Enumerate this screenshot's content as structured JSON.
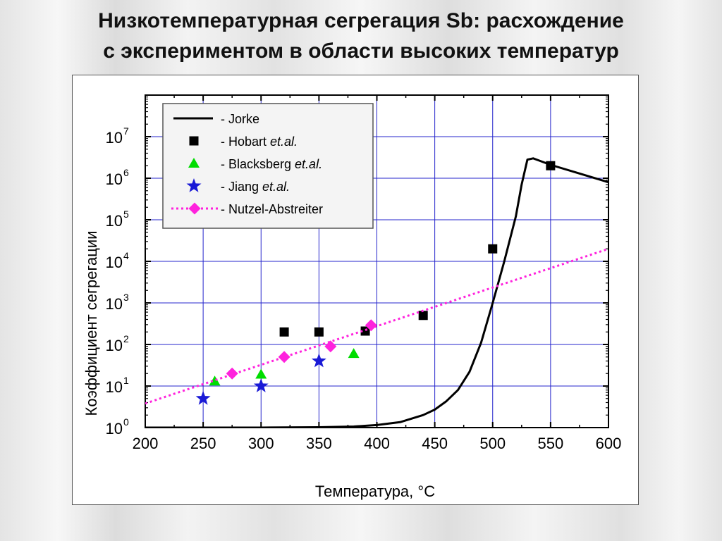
{
  "slide": {
    "title_line1": "Низкотемпературная сегрегация Sb: расхождение",
    "title_line2": "с экспериментом в области высоких температур"
  },
  "chart_data": {
    "type": "scatter",
    "xlabel": "Температура, °C",
    "ylabel": "Коэффициент сегрегации",
    "xlim": [
      200,
      600
    ],
    "ylim": [
      1,
      100000000
    ],
    "y_scale": "log",
    "x_ticks": [
      200,
      250,
      300,
      350,
      400,
      450,
      500,
      550,
      600
    ],
    "y_ticks": [
      {
        "base": "10",
        "exp": "0",
        "value": 1
      },
      {
        "base": "10",
        "exp": "1",
        "value": 10
      },
      {
        "base": "10",
        "exp": "2",
        "value": 100
      },
      {
        "base": "10",
        "exp": "3",
        "value": 1000
      },
      {
        "base": "10",
        "exp": "4",
        "value": 10000
      },
      {
        "base": "10",
        "exp": "5",
        "value": 100000
      },
      {
        "base": "10",
        "exp": "6",
        "value": 1000000
      },
      {
        "base": "10",
        "exp": "7",
        "value": 10000000
      }
    ],
    "grid": true,
    "legend_position": "top-left",
    "series": [
      {
        "name": "Jorke",
        "name_suffix": "",
        "kind": "line",
        "color": "#000000",
        "points": [
          [
            200,
            1
          ],
          [
            300,
            1
          ],
          [
            350,
            1.02
          ],
          [
            380,
            1.06
          ],
          [
            400,
            1.15
          ],
          [
            420,
            1.35
          ],
          [
            440,
            2
          ],
          [
            450,
            2.7
          ],
          [
            460,
            4.3
          ],
          [
            470,
            8
          ],
          [
            480,
            22
          ],
          [
            490,
            110
          ],
          [
            500,
            1000
          ],
          [
            510,
            10000
          ],
          [
            520,
            120000
          ],
          [
            525,
            700000
          ],
          [
            530,
            2800000
          ],
          [
            535,
            3000000
          ],
          [
            550,
            2100000
          ],
          [
            575,
            1300000
          ],
          [
            600,
            800000
          ]
        ]
      },
      {
        "name": "Hobart",
        "name_suffix": "et.al.",
        "kind": "square",
        "color": "#000000",
        "points": [
          [
            320,
            200
          ],
          [
            350,
            200
          ],
          [
            390,
            210
          ],
          [
            440,
            500
          ],
          [
            500,
            20000
          ],
          [
            550,
            2000000
          ]
        ]
      },
      {
        "name": "Blacksberg",
        "name_suffix": "et.al.",
        "kind": "triangle",
        "color": "#00dd00",
        "points": [
          [
            260,
            13
          ],
          [
            300,
            19
          ],
          [
            380,
            60
          ]
        ]
      },
      {
        "name": "Jiang",
        "name_suffix": "et.al.",
        "kind": "star",
        "color": "#1a1ad6",
        "points": [
          [
            250,
            5
          ],
          [
            300,
            10
          ],
          [
            350,
            40
          ]
        ]
      },
      {
        "name": "Nutzel-Abstreiter",
        "name_suffix": "",
        "kind": "diamond-dotted",
        "color": "#ff22dd",
        "fit_line": [
          [
            200,
            3.8
          ],
          [
            600,
            20000
          ]
        ],
        "points": [
          [
            275,
            20
          ],
          [
            320,
            50
          ],
          [
            360,
            90
          ],
          [
            395,
            290
          ]
        ]
      }
    ]
  }
}
